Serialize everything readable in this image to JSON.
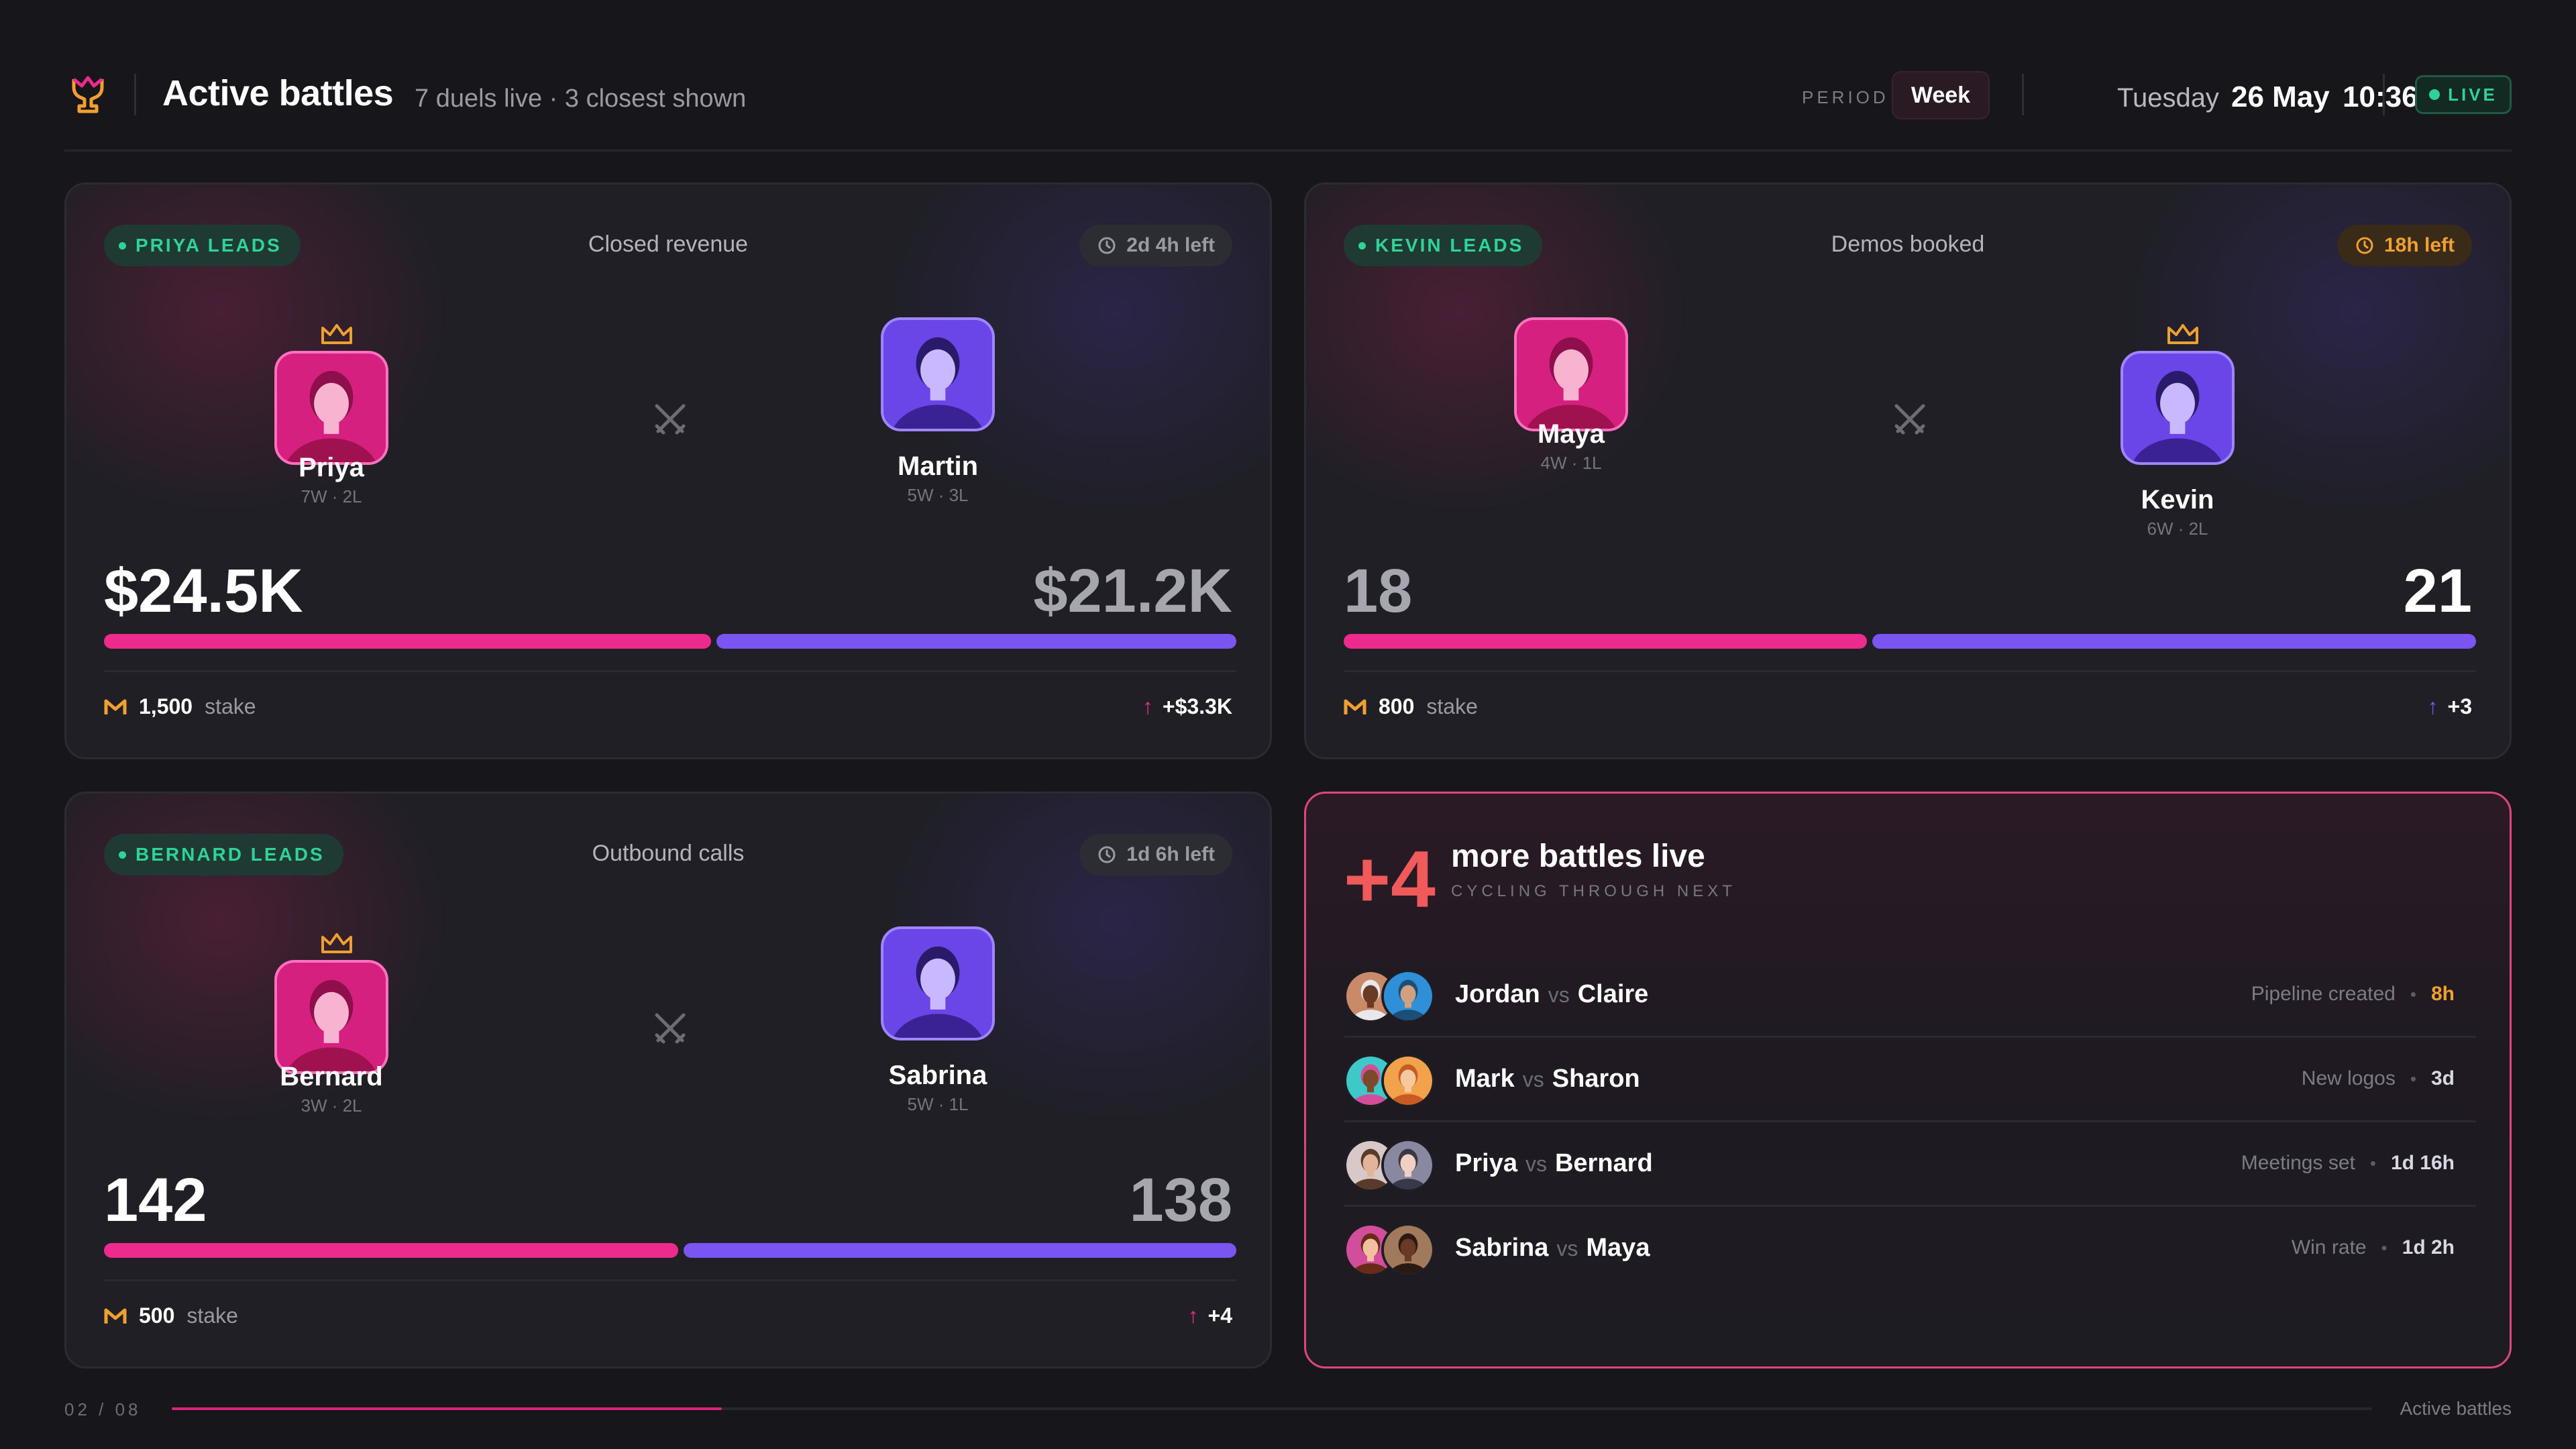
{
  "header": {
    "title": "Active battles",
    "subtitle": "7 duels live · 3 closest shown",
    "period_label": "PERIOD",
    "period_value": "Week",
    "day": "Tuesday",
    "date": "26 May",
    "time": "10:36",
    "live_label": "LIVE",
    "logo_icon": "trophy-icon"
  },
  "colors": {
    "background": "#17171b",
    "card": "#1f1f25",
    "pink": "#ec2b8c",
    "violet": "#7a55f2",
    "leads_green": "#2fd39a",
    "warning_amber": "#f0a030",
    "more_border": "#e0467e"
  },
  "battles": [
    {
      "lead_label": "PRIYA LEADS",
      "metric": "Closed revenue",
      "time_left": "2d 4h  left",
      "urgent": false,
      "left": {
        "name": "Priya",
        "record": "7W · 2L",
        "score": "$24.5K",
        "leader": true
      },
      "right": {
        "name": "Martin",
        "record": "5W · 3L",
        "score": "$21.2K",
        "leader": false
      },
      "left_share": 0.536,
      "stake_amount": "1,500",
      "stake_label": "stake",
      "delta": "+$3.3K",
      "delta_color": "pink"
    },
    {
      "lead_label": "KEVIN LEADS",
      "metric": "Demos booked",
      "time_left": "18h  left",
      "urgent": true,
      "left": {
        "name": "Maya",
        "record": "4W · 1L",
        "score": "18",
        "leader": false
      },
      "right": {
        "name": "Kevin",
        "record": "6W · 2L",
        "score": "21",
        "leader": true
      },
      "left_share": 0.462,
      "stake_amount": "800",
      "stake_label": "stake",
      "delta": "+3",
      "delta_color": "violet"
    },
    {
      "lead_label": "BERNARD LEADS",
      "metric": "Outbound calls",
      "time_left": "1d 6h  left",
      "urgent": false,
      "left": {
        "name": "Bernard",
        "record": "3W · 2L",
        "score": "142",
        "leader": true
      },
      "right": {
        "name": "Sabrina",
        "record": "5W · 1L",
        "score": "138",
        "leader": false
      },
      "left_share": 0.507,
      "stake_amount": "500",
      "stake_label": "stake",
      "delta": "+4",
      "delta_color": "pink"
    }
  ],
  "more": {
    "count": "+4",
    "title": "more battles live",
    "subtitle": "CYCLING THROUGH NEXT",
    "rows": [
      {
        "a": "Jordan",
        "vs": "vs",
        "b": "Claire",
        "metric": "Pipeline created",
        "bullet": "•",
        "time": "8h",
        "urgent": true
      },
      {
        "a": "Mark",
        "vs": "vs",
        "b": "Sharon",
        "metric": "New logos",
        "bullet": "•",
        "time": "3d",
        "urgent": false
      },
      {
        "a": "Priya",
        "vs": "vs",
        "b": "Bernard",
        "metric": "Meetings set",
        "bullet": "•",
        "time": "1d 16h",
        "urgent": false
      },
      {
        "a": "Sabrina",
        "vs": "vs",
        "b": "Maya",
        "metric": "Win rate",
        "bullet": "•",
        "time": "1d 2h",
        "urgent": false
      }
    ]
  },
  "footer": {
    "page": "02 / 08",
    "progress": 0.25,
    "label": "Active battles"
  }
}
